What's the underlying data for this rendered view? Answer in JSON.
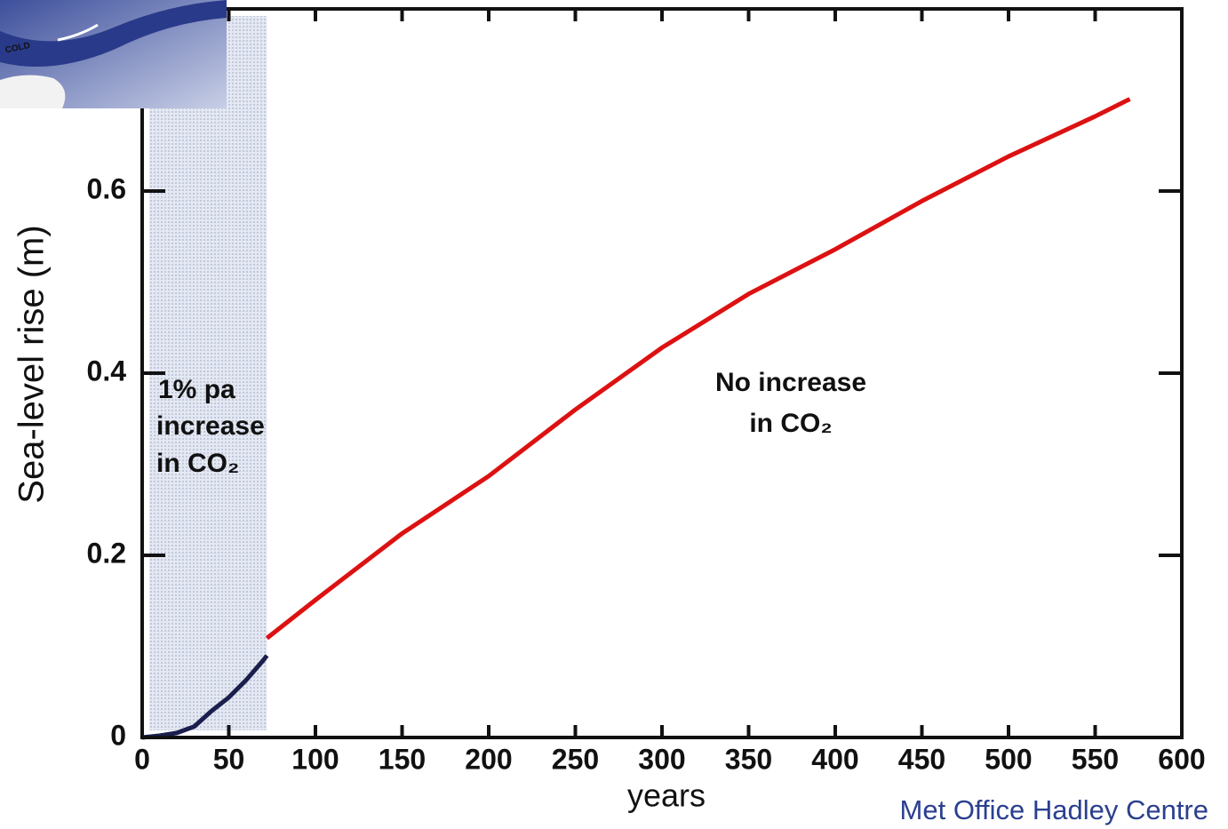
{
  "chart_data": {
    "type": "line",
    "xlabel": "years",
    "ylabel": "Sea-level rise (m)",
    "xlim": [
      0,
      600
    ],
    "ylim": [
      0,
      0.8
    ],
    "xticks": [
      0,
      50,
      100,
      150,
      200,
      250,
      300,
      350,
      400,
      450,
      500,
      550,
      600
    ],
    "yticks": [
      0,
      0.2,
      0.4,
      0.6
    ],
    "highlight_span": [
      0,
      72
    ],
    "series": [
      {
        "color": "#1a1f4e",
        "x": [
          0,
          10,
          20,
          30,
          40,
          50,
          60,
          70,
          72
        ],
        "values": [
          0,
          0.002,
          0.005,
          0.012,
          0.029,
          0.044,
          0.063,
          0.085,
          0.09
        ]
      },
      {
        "color": "#dd1111",
        "x": [
          72,
          100,
          150,
          200,
          250,
          300,
          350,
          400,
          450,
          500,
          550,
          570
        ],
        "values": [
          0.109,
          0.151,
          0.224,
          0.287,
          0.36,
          0.428,
          0.487,
          0.536,
          0.589,
          0.638,
          0.682,
          0.701
        ]
      }
    ],
    "annotations": [
      "1% pa",
      "increase",
      "in CO₂",
      "No increase",
      "in CO₂"
    ],
    "credit": "Met Office Hadley Centre"
  },
  "inset_label": "COLD"
}
